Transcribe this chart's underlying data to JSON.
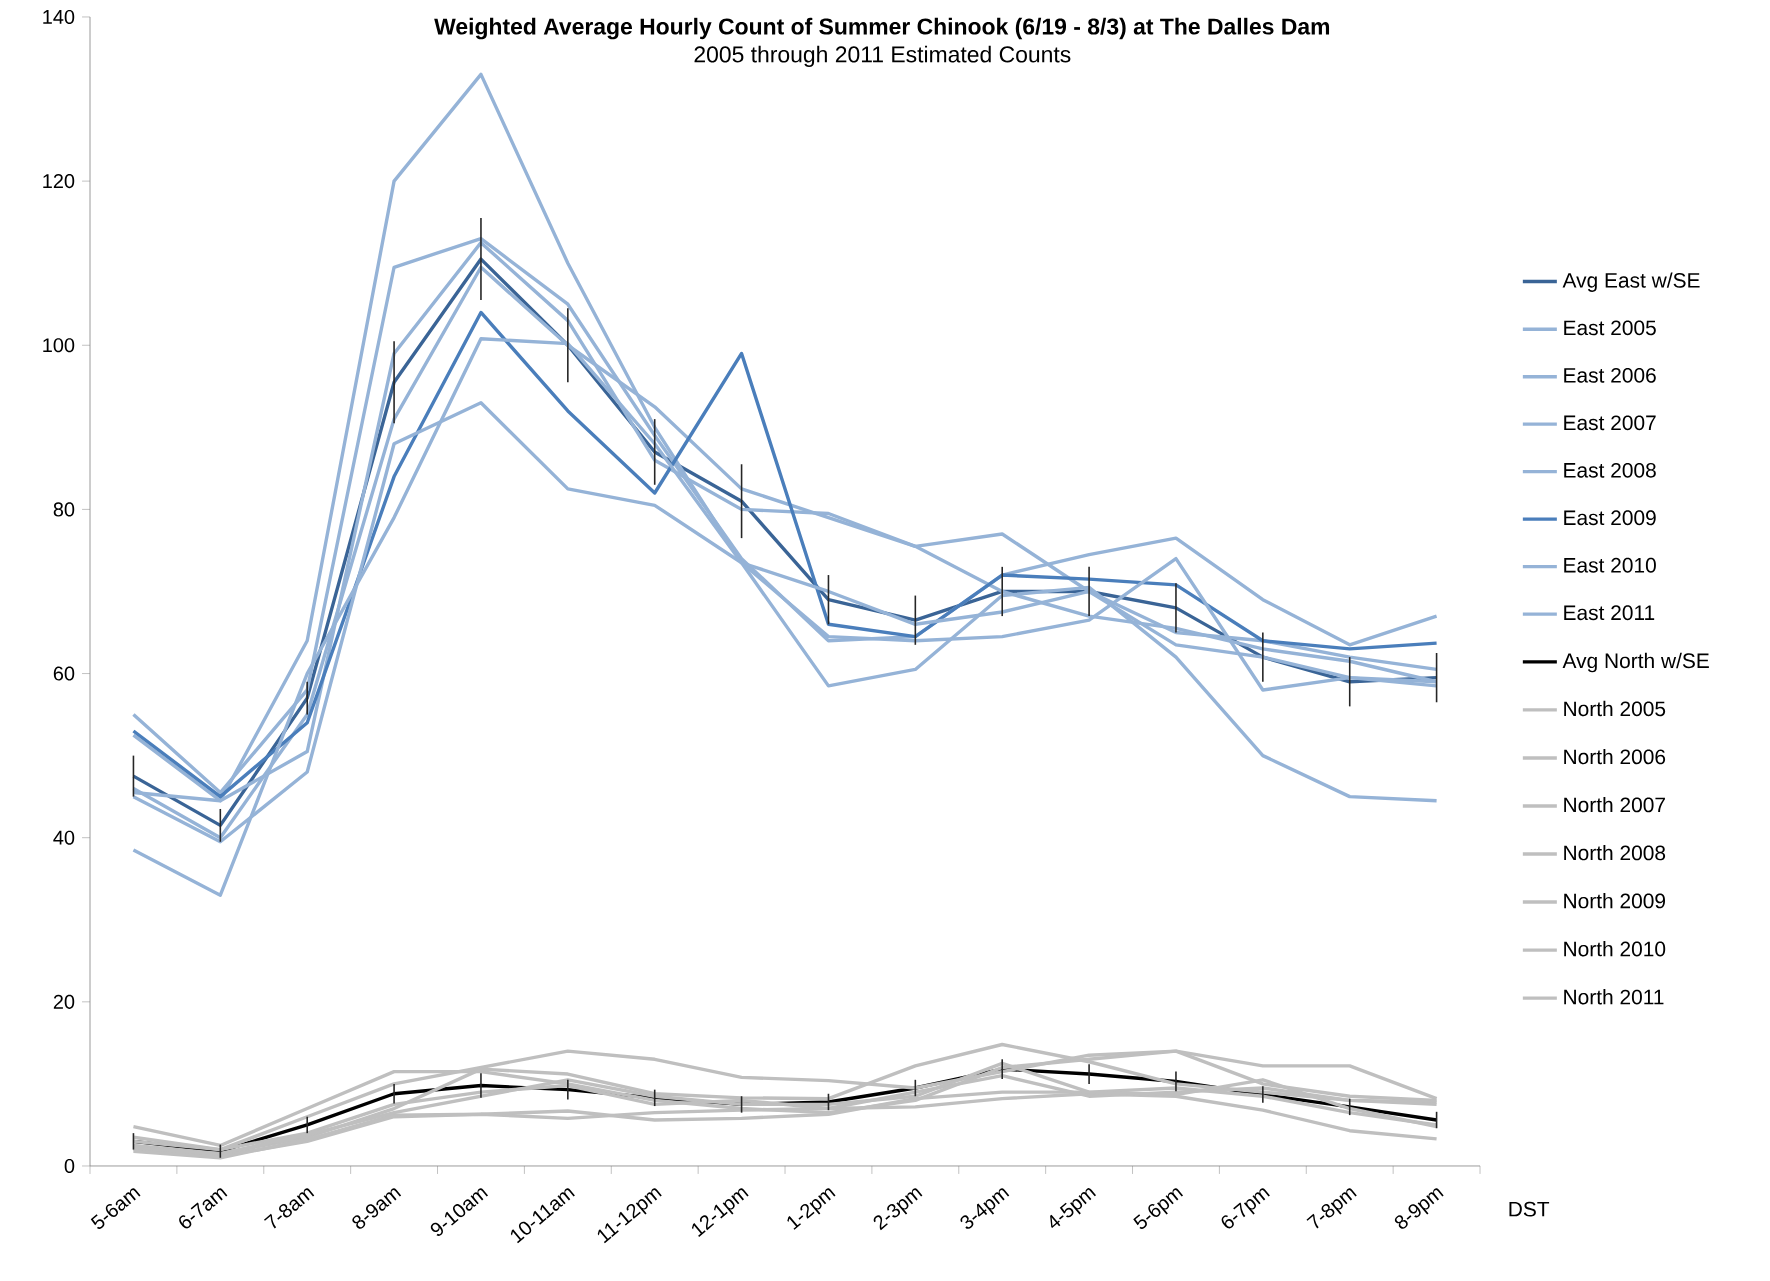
{
  "chart_data": {
    "type": "line",
    "title": "Weighted Average Hourly Count of Summer Chinook (6/19 - 8/3) at The Dalles Dam",
    "subtitle": "2005 through 2011 Estimated Counts",
    "xlabel": "DST",
    "categories": [
      "5-6am",
      "6-7am",
      "7-8am",
      "8-9am",
      "9-10am",
      "10-11am",
      "11-12pm",
      "12-1pm",
      "1-2pm",
      "2-3pm",
      "3-4pm",
      "4-5pm",
      "5-6pm",
      "6-7pm",
      "7-8pm",
      "8-9pm"
    ],
    "ylim": [
      0,
      140
    ],
    "yticks": [
      0,
      20,
      40,
      60,
      80,
      100,
      120,
      140
    ],
    "grid": false,
    "legend": "right",
    "series": [
      {
        "name": "Avg East w/SE",
        "color": "#3a6496",
        "values": [
          47.5,
          41.5,
          57,
          95.5,
          110.5,
          100,
          87,
          81,
          69,
          66.5,
          70,
          70,
          68,
          62,
          59,
          59.5
        ],
        "errors": [
          2.5,
          2,
          2,
          5,
          5,
          4.5,
          4,
          4.5,
          3,
          3,
          3,
          3,
          3,
          3,
          3,
          3
        ]
      },
      {
        "name": "East 2005",
        "color": "#95b3d7",
        "values": [
          45.5,
          44.5,
          64,
          120,
          133,
          110,
          90,
          73.5,
          58.5,
          60.5,
          69.5,
          70.5,
          62,
          50,
          45,
          44.5
        ]
      },
      {
        "name": "East 2006",
        "color": "#95b3d7",
        "values": [
          55,
          45.5,
          58,
          109.5,
          113,
          105,
          89,
          74,
          64,
          64.5,
          72,
          74.5,
          76.5,
          69,
          63.5,
          67
        ]
      },
      {
        "name": "East 2007",
        "color": "#95b3d7",
        "values": [
          52.5,
          44.5,
          50.5,
          99,
          112.5,
          103,
          86,
          80,
          79.5,
          75.5,
          77,
          70,
          65,
          64,
          62,
          60.5
        ]
      },
      {
        "name": "East 2008",
        "color": "#95b3d7",
        "values": [
          46,
          40,
          55,
          91,
          109.5,
          100,
          92.5,
          82.5,
          79,
          75.5,
          70,
          67,
          65.5,
          63,
          61.5,
          59
        ]
      },
      {
        "name": "East 2009",
        "color": "#4a7ebb",
        "values": [
          53,
          45,
          54,
          84,
          104,
          92,
          82,
          99,
          66,
          64.5,
          72,
          71.5,
          70.8,
          64,
          63,
          63.7
        ]
      },
      {
        "name": "East 2010",
        "color": "#95b3d7",
        "values": [
          45,
          39.5,
          48,
          88,
          93,
          82.5,
          80.5,
          73.5,
          64.5,
          64,
          64.5,
          66.5,
          74,
          58,
          59.5,
          58.5
        ]
      },
      {
        "name": "East 2011",
        "color": "#95b3d7",
        "values": [
          38.5,
          33,
          60,
          79,
          100.8,
          100.2,
          88,
          73.5,
          70,
          66,
          67.5,
          70,
          63.5,
          62,
          59.5,
          59
        ]
      },
      {
        "name": "Avg North w/SE",
        "color": "#000000",
        "values": [
          3,
          1.8,
          5,
          8.8,
          9.8,
          9.3,
          8.3,
          7.5,
          7.8,
          9.5,
          11.8,
          11.2,
          10.3,
          8.7,
          7.2,
          5.6
        ],
        "errors": [
          1,
          0.8,
          1,
          1.2,
          1.5,
          1.2,
          1,
          1,
          1,
          1,
          1.2,
          1.2,
          1.2,
          1,
          1,
          1
        ]
      },
      {
        "name": "North 2005",
        "color": "#bfbfbf",
        "values": [
          4.8,
          2.5,
          7,
          11.5,
          11.5,
          10,
          8,
          7,
          6.5,
          8,
          12,
          13,
          14,
          12.2,
          12.2,
          8.2
        ]
      },
      {
        "name": "North 2006",
        "color": "#bfbfbf",
        "values": [
          3.5,
          2,
          6,
          10,
          12,
          14,
          13,
          10.8,
          10.4,
          9.5,
          11.5,
          13.5,
          14,
          10,
          8.5,
          8
        ]
      },
      {
        "name": "North 2007",
        "color": "#bfbfbf",
        "values": [
          2.5,
          1.5,
          3.5,
          7,
          11.8,
          11.2,
          8.8,
          8.3,
          8.2,
          12.2,
          14.8,
          12.7,
          10,
          9,
          8,
          7.8
        ]
      },
      {
        "name": "North 2008",
        "color": "#bfbfbf",
        "values": [
          2,
          1.2,
          3,
          6,
          6.3,
          5.8,
          6.5,
          6.8,
          7,
          7.2,
          8.2,
          8.8,
          8.5,
          6.8,
          4.3,
          3.3
        ]
      },
      {
        "name": "North 2009",
        "color": "#bfbfbf",
        "values": [
          1.8,
          1,
          3.2,
          6.2,
          6.3,
          6.7,
          5.6,
          5.8,
          6.3,
          8.2,
          9,
          9,
          9.5,
          8.5,
          6.5,
          5
        ]
      },
      {
        "name": "North 2010",
        "color": "#bfbfbf",
        "values": [
          3,
          2,
          4,
          7.5,
          9,
          9.8,
          7.5,
          8,
          7,
          9,
          11,
          8.5,
          9,
          9.5,
          8,
          7.5
        ]
      },
      {
        "name": "North 2011",
        "color": "#bfbfbf",
        "values": [
          2.2,
          1.5,
          3.8,
          6.5,
          8.5,
          10.5,
          8.5,
          7.5,
          7.5,
          8.5,
          12.5,
          9,
          8.7,
          10.5,
          7,
          4.8
        ]
      }
    ]
  }
}
